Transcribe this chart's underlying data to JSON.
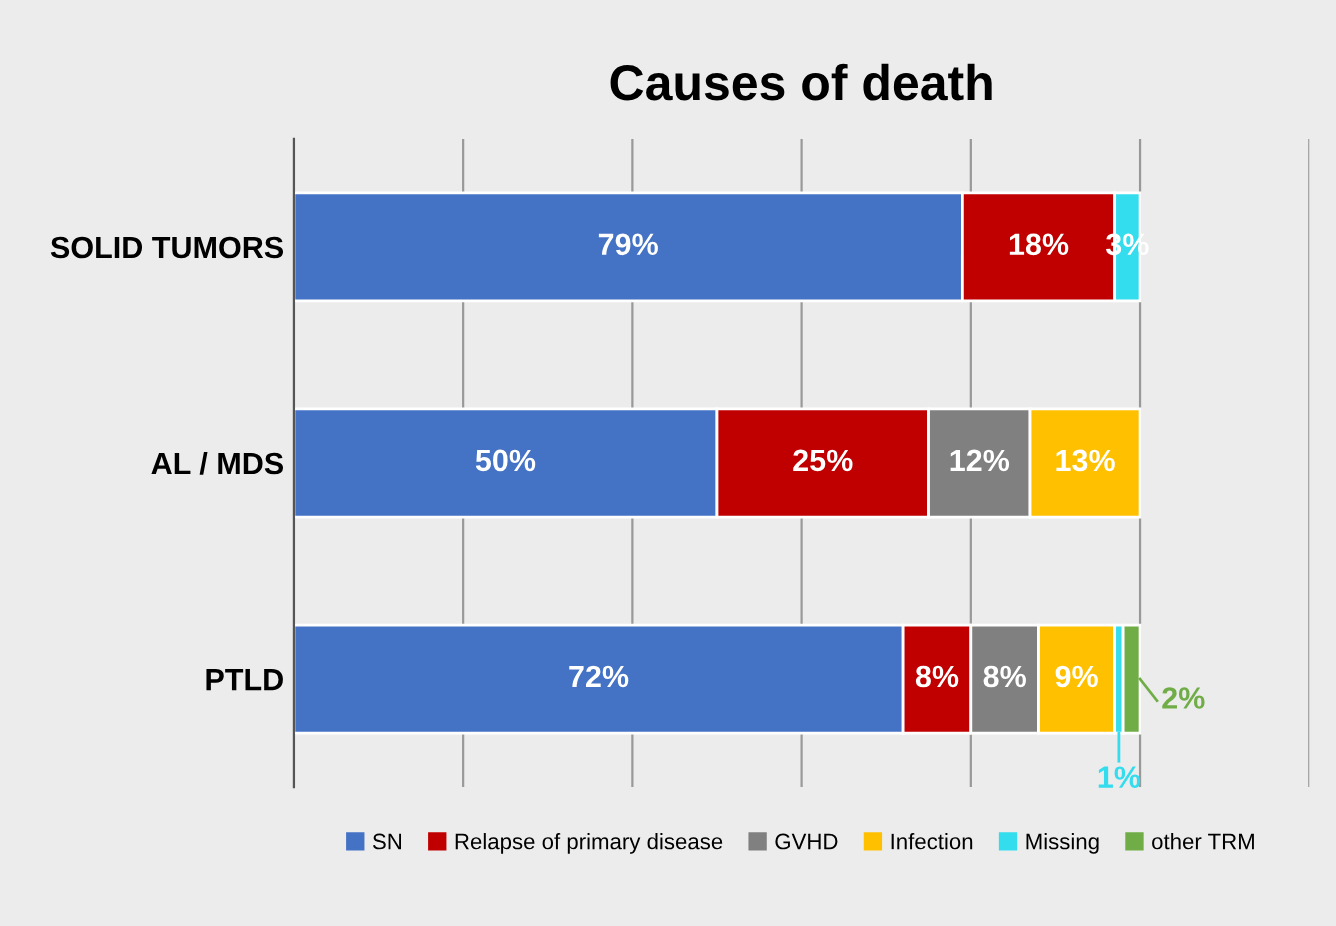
{
  "chart_data": {
    "type": "bar",
    "orientation": "horizontal",
    "stacked": true,
    "title": "Causes of death",
    "categories": [
      "SOLID TUMORS",
      "AL / MDS",
      "PTLD"
    ],
    "series": [
      {
        "name": "SN",
        "color": "#4472c4",
        "values": [
          79,
          50,
          72
        ],
        "value_labels": [
          "79%",
          "50%",
          "72%"
        ]
      },
      {
        "name": "Relapse of primary disease",
        "color": "#c00000",
        "values": [
          18,
          25,
          8
        ],
        "value_labels": [
          "18%",
          "25%",
          "8%"
        ]
      },
      {
        "name": "GVHD",
        "color": "#808080",
        "values": [
          null,
          12,
          8
        ],
        "value_labels": [
          null,
          "12%",
          "8%"
        ]
      },
      {
        "name": "Infection",
        "color": "#ffc000",
        "values": [
          null,
          13,
          9
        ],
        "value_labels": [
          null,
          "13%",
          "9%"
        ]
      },
      {
        "name": "Missing",
        "color": "#33ddee",
        "values": [
          3,
          null,
          1
        ],
        "value_labels": [
          "3%",
          null,
          "1%"
        ]
      },
      {
        "name": "other TRM",
        "color": "#70ad47",
        "values": [
          null,
          null,
          2
        ],
        "value_labels": [
          null,
          null,
          "2%"
        ]
      }
    ],
    "xlim": [
      0,
      120
    ],
    "xticks": [
      {
        "value": 0,
        "label": null
      },
      {
        "value": 20,
        "label": null
      },
      {
        "value": 40,
        "label": null
      },
      {
        "value": 60,
        "label": null
      },
      {
        "value": 80,
        "label": null
      },
      {
        "value": 100,
        "label": null
      },
      {
        "value": 120,
        "label": null
      }
    ],
    "tick_labels": "y",
    "grid": "x",
    "legend": "bottom"
  }
}
